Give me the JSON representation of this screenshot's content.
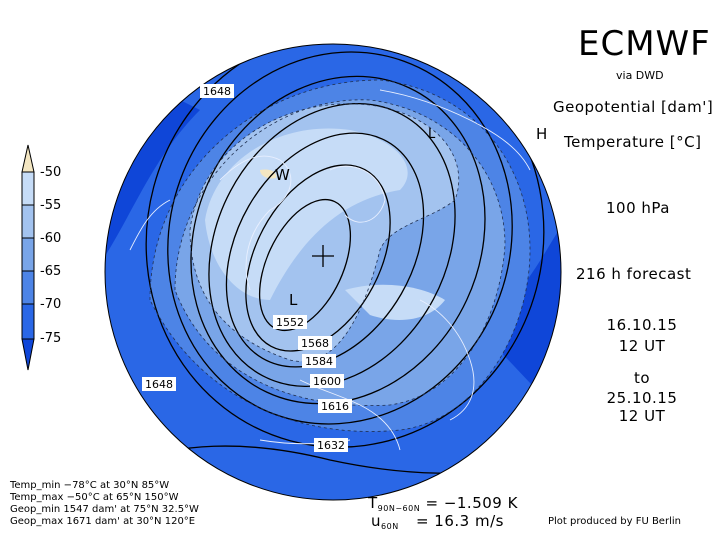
{
  "header": {
    "title": "ECMWF",
    "subtitle": "via DWD"
  },
  "fields": {
    "geopotential": "Geopotential [dam']",
    "temperature": "Temperature [°C]"
  },
  "level": "100 hPa",
  "forecast": "216 h forecast",
  "time": {
    "start_date": "16.10.15",
    "start_time": "12 UT",
    "to": "to",
    "end_date": "25.10.15",
    "end_time": "12 UT"
  },
  "legend": {
    "labels": [
      "-50",
      "-55",
      "-60",
      "-65",
      "-70",
      "-75"
    ],
    "colors": [
      "#f3e6c2",
      "#c6dcf7",
      "#a3c3ef",
      "#79a5e8",
      "#4d84e6",
      "#2a67e6",
      "#0f46d8"
    ]
  },
  "stats": {
    "temp_min": "Temp_min −78°C at 30°N 85°W",
    "temp_max": "Temp_max −50°C at 65°N 150°W",
    "geop_min": "Geop_min 1547 dam' at 75°N 32.5°W",
    "geop_max": "Geop_max 1671 dam' at 30°N 120°E"
  },
  "indices": {
    "t_label": "T",
    "t_sub": "90N−60N",
    "t_value": "= −1.509 K",
    "u_label": "u",
    "u_sub": "60N",
    "u_value": "= 16.3 m/s"
  },
  "credit": "Plot produced by FU Berlin",
  "map": {
    "contour_labels": [
      "1648",
      "1552",
      "1568",
      "1584",
      "1600",
      "1616",
      "1632",
      "1648"
    ],
    "center_markers": {
      "low": "L",
      "warm": "W",
      "high": "H",
      "low2": "L"
    }
  }
}
